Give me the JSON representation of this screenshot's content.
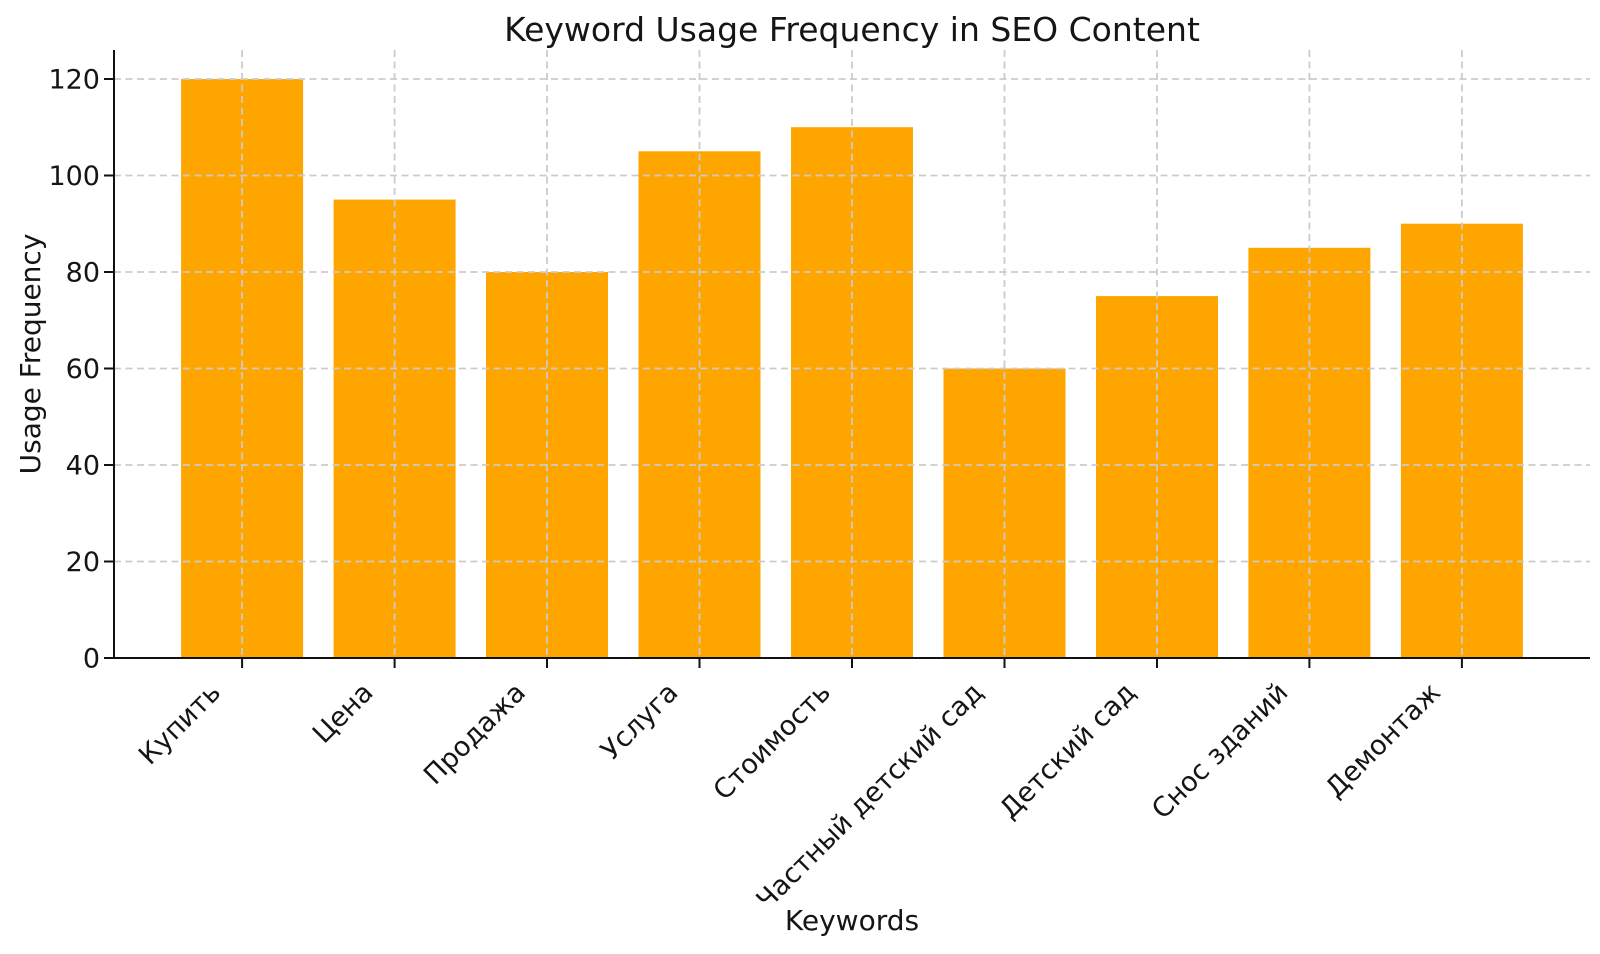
{
  "chart_data": {
    "type": "bar",
    "title": "Keyword Usage Frequency in SEO Content",
    "xlabel": "Keywords",
    "ylabel": "Usage Frequency",
    "categories": [
      "Купить",
      "Цена",
      "Продажа",
      "Услуга",
      "Стоимость",
      "Частный детский сад",
      "Детский сад",
      "Снос зданий",
      "Демонтаж"
    ],
    "values": [
      120,
      95,
      80,
      105,
      110,
      60,
      75,
      85,
      90
    ],
    "yticks": [
      0,
      20,
      40,
      60,
      80,
      100,
      120
    ],
    "ylim": [
      0,
      126
    ],
    "x_tick_rotation": 45,
    "bar_color": "#FFA500",
    "grid_color": "#cbcbcb",
    "grid_style": "dashed",
    "grid_on_top": true,
    "axis_color": "#111111",
    "text_color": "#151515",
    "background_color": "#ffffff",
    "legend": "none"
  }
}
